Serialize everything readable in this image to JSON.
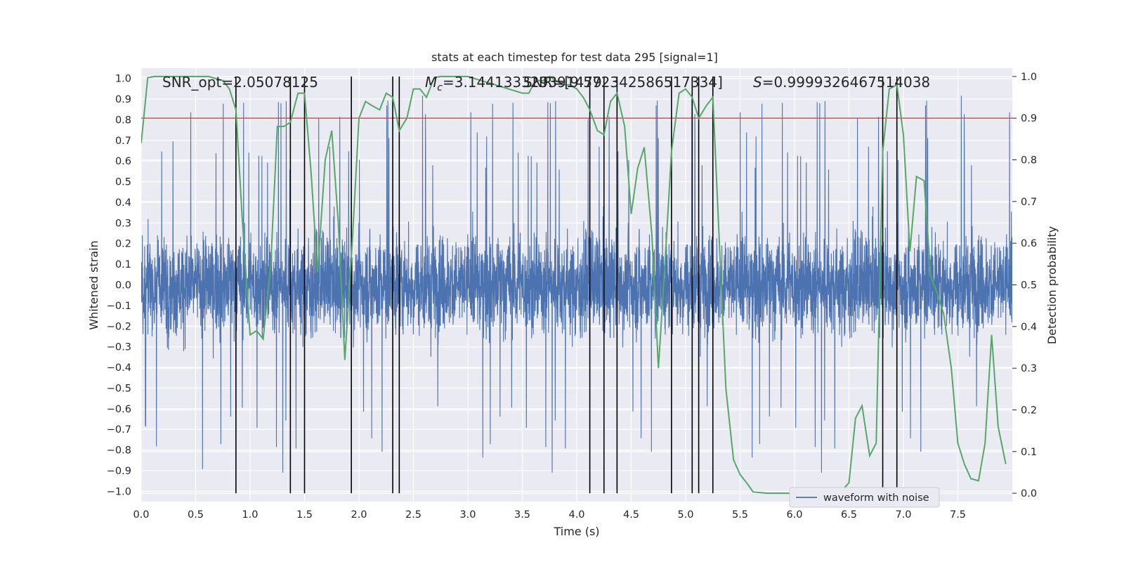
{
  "chart_data": {
    "type": "line",
    "title": "stats at each timestep for test data 295 [signal=1]",
    "xlabel": "Time (s)",
    "ylabel": "Whitened strain",
    "y2label": "Detection probability",
    "xlim": [
      0.0,
      8.0
    ],
    "ylim": [
      -1.05,
      1.05
    ],
    "y2lim": [
      -0.02,
      1.02
    ],
    "xticks": [
      "0.0",
      "0.5",
      "1.0",
      "1.5",
      "2.0",
      "2.5",
      "3.0",
      "3.5",
      "4.0",
      "4.5",
      "5.0",
      "5.5",
      "6.0",
      "6.5",
      "7.0",
      "7.5"
    ],
    "yticks": [
      "1.0",
      "0.9",
      "0.8",
      "0.7",
      "0.6",
      "0.5",
      "0.4",
      "0.3",
      "0.2",
      "0.1",
      "0.0",
      "−0.1",
      "−0.2",
      "−0.3",
      "−0.4",
      "−0.5",
      "−0.6",
      "−0.7",
      "−0.8",
      "−0.9",
      "−1.0"
    ],
    "y2ticks": [
      "1.0",
      "0.9",
      "0.8",
      "0.7",
      "0.6",
      "0.5",
      "0.4",
      "0.3",
      "0.2",
      "0.1",
      "0.0"
    ],
    "grid": true,
    "legend_location": "lower-right",
    "annotations": {
      "snr": "SNR_opt=2.05078125",
      "mc_prefix": "M",
      "mc_sub": "c",
      "mc_value": "=3.144133329391479",
      "snr2": "SNR=[9.572342586517334]",
      "s_prefix": "S",
      "s_value": "=0.9999326467514038"
    },
    "threshold": {
      "value": 0.9,
      "axis": "y2",
      "color": "#c44e52"
    },
    "event_times": [
      0.87,
      1.37,
      1.5,
      1.93,
      2.31,
      2.37,
      4.12,
      4.25,
      4.37,
      4.87,
      5.06,
      5.12,
      5.25,
      6.81,
      6.94
    ],
    "series": [
      {
        "name": "waveform with noise",
        "axis": "y",
        "color": "#4c72b0",
        "kind": "noise",
        "duration": 8.0,
        "typical_amplitude": 0.4,
        "peak_amplitude": 0.95
      },
      {
        "axis": "y2",
        "color": "#55a868",
        "t": [
          0.0,
          0.06,
          0.12,
          0.25,
          0.5,
          0.62,
          0.75,
          0.81,
          0.87,
          0.93,
          1.0,
          1.06,
          1.12,
          1.19,
          1.25,
          1.31,
          1.37,
          1.44,
          1.5,
          1.56,
          1.62,
          1.69,
          1.75,
          1.81,
          1.87,
          1.94,
          2.0,
          2.06,
          2.12,
          2.19,
          2.25,
          2.31,
          2.37,
          2.44,
          2.5,
          2.56,
          2.62,
          2.69,
          2.75,
          3.0,
          3.25,
          3.5,
          3.56,
          3.62,
          3.69,
          3.75,
          3.81,
          3.87,
          3.94,
          4.0,
          4.06,
          4.12,
          4.19,
          4.25,
          4.31,
          4.37,
          4.44,
          4.5,
          4.56,
          4.62,
          4.69,
          4.75,
          4.81,
          4.87,
          4.94,
          5.0,
          5.06,
          5.12,
          5.19,
          5.25,
          5.31,
          5.37,
          5.44,
          5.5,
          5.56,
          5.62,
          5.75,
          6.0,
          6.19,
          6.25,
          6.31,
          6.37,
          6.44,
          6.5,
          6.56,
          6.62,
          6.69,
          6.75,
          6.81,
          6.87,
          6.94,
          7.0,
          7.06,
          7.12,
          7.19,
          7.25,
          7.31,
          7.37,
          7.44,
          7.5,
          7.56,
          7.62,
          7.69,
          7.75,
          7.81,
          7.87,
          7.94
        ],
        "values": [
          0.84,
          0.997,
          1.0,
          1.0,
          1.0,
          1.0,
          0.99,
          0.97,
          0.92,
          0.65,
          0.38,
          0.39,
          0.37,
          0.55,
          0.88,
          0.88,
          0.89,
          0.96,
          0.96,
          0.77,
          0.53,
          0.8,
          0.87,
          0.65,
          0.32,
          0.61,
          0.9,
          0.94,
          0.93,
          0.92,
          0.96,
          0.95,
          0.87,
          0.9,
          0.97,
          0.97,
          0.95,
          0.997,
          1.0,
          1.0,
          0.98,
          0.96,
          0.96,
          0.99,
          0.99,
          1.0,
          0.99,
          0.98,
          0.98,
          0.97,
          0.95,
          0.92,
          0.87,
          0.86,
          0.94,
          0.96,
          0.88,
          0.67,
          0.78,
          0.83,
          0.62,
          0.3,
          0.55,
          0.82,
          0.96,
          0.97,
          0.95,
          0.9,
          0.93,
          0.95,
          0.6,
          0.25,
          0.08,
          0.045,
          0.025,
          0.003,
          0.0,
          0.0,
          0.0,
          0.0,
          0.012,
          0.012,
          0.008,
          0.025,
          0.18,
          0.21,
          0.09,
          0.12,
          0.82,
          0.97,
          0.98,
          0.86,
          0.58,
          0.76,
          0.75,
          0.52,
          0.48,
          0.43,
          0.3,
          0.12,
          0.07,
          0.035,
          0.03,
          0.12,
          0.38,
          0.16,
          0.07
        ]
      }
    ]
  }
}
